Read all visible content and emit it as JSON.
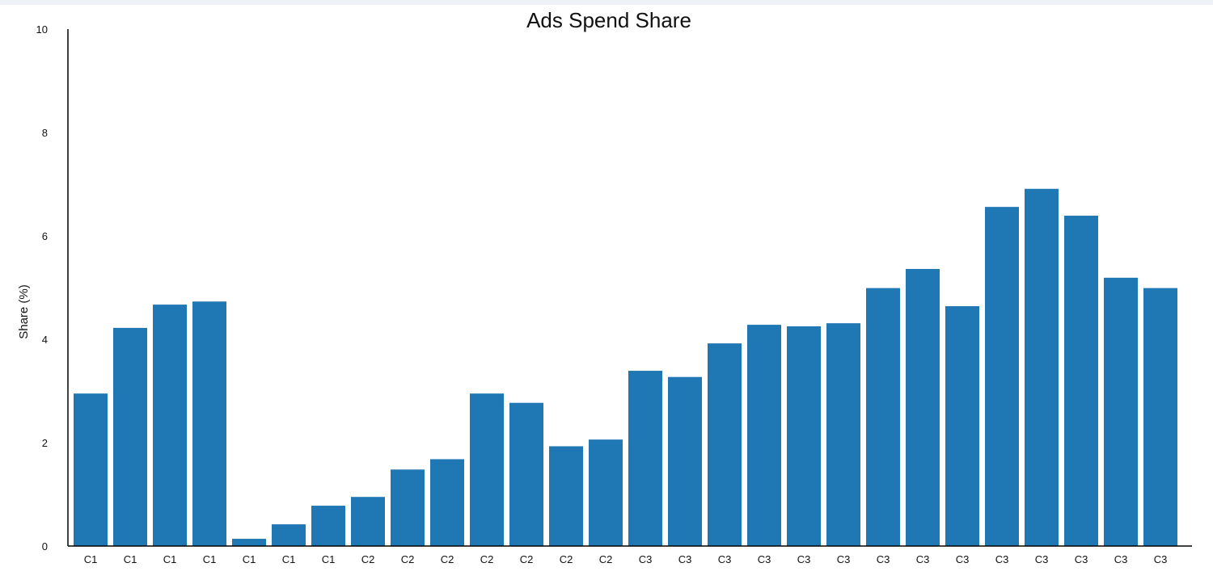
{
  "chart_data": {
    "type": "bar",
    "title": "Ads Spend Share",
    "xlabel": "",
    "ylabel": "Share (%)",
    "ylim": [
      0,
      10
    ],
    "yticks": [
      0,
      2,
      4,
      6,
      8,
      10
    ],
    "grid": false,
    "legend": "none",
    "color": "#1f77b4",
    "categories": [
      "C1",
      "C1",
      "C1",
      "C1",
      "C1",
      "C1",
      "C1",
      "C2",
      "C2",
      "C2",
      "C2",
      "C2",
      "C2",
      "C2",
      "C3",
      "C3",
      "C3",
      "C3",
      "C3",
      "C3",
      "C3",
      "C3",
      "C3",
      "C3",
      "C3",
      "C3",
      "C3",
      "C3"
    ],
    "values": [
      2.95,
      4.22,
      4.67,
      4.73,
      0.14,
      0.42,
      0.78,
      0.95,
      1.48,
      1.68,
      2.95,
      2.77,
      1.93,
      2.06,
      3.39,
      3.27,
      3.92,
      4.28,
      4.25,
      4.31,
      4.99,
      5.36,
      4.64,
      6.56,
      6.91,
      6.39,
      5.19,
      4.99
    ]
  }
}
